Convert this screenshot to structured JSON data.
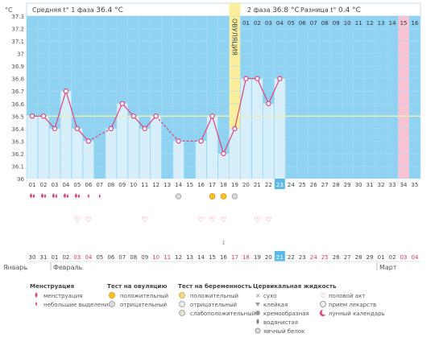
{
  "header": {
    "phase1_label": "Средняя t° 1 фаза",
    "phase1_value": "36.4 °C",
    "phase2_label": "2 фаза",
    "phase2_value": "36.8 °C",
    "diff_label": "Разница t°",
    "diff_value": "0.4 °C",
    "sun_icon": "sun-icon"
  },
  "y_unit": "°C",
  "ovulation_label": "ОВУЛЯЦИЯ",
  "colors": {
    "sky": "#8fd2f1",
    "bar": "#d7eefb",
    "line": "#e0447c",
    "ovulation": "#fbef9e",
    "menstruation_col": "#f7c2d2",
    "coverline": "#e7efb8",
    "today": "#5ab9e8",
    "red_text": "#e0306c"
  },
  "chart_data": {
    "type": "line",
    "ylim": [
      36.0,
      37.3
    ],
    "yticks": [
      "36",
      "36.1",
      "36.2",
      "36.3",
      "36.4",
      "36.5",
      "36.6",
      "36.7",
      "36.8",
      "36.9",
      "37",
      "37.1",
      "37.2",
      "37.3"
    ],
    "cycle_days": [
      "01",
      "02",
      "03",
      "04",
      "05",
      "06",
      "07",
      "08",
      "09",
      "10",
      "11",
      "12",
      "13",
      "14",
      "15",
      "16",
      "17",
      "18",
      "19",
      "20",
      "21",
      "22",
      "23",
      "24",
      "25",
      "26",
      "27",
      "28",
      "29",
      "30",
      "31",
      "32",
      "33",
      "34",
      "35"
    ],
    "temperatures": [
      36.5,
      36.5,
      36.4,
      36.7,
      36.4,
      36.3,
      null,
      36.4,
      36.6,
      36.5,
      36.4,
      36.5,
      null,
      36.3,
      null,
      36.3,
      36.5,
      36.2,
      36.4,
      36.8,
      36.8,
      36.6,
      36.8,
      null,
      null,
      null,
      null,
      null,
      null,
      null,
      null,
      null,
      null,
      null,
      null
    ],
    "coverline": 36.5,
    "ovulation_day": "19",
    "today_day": "23",
    "next_menstruation_day": "34",
    "phase2_day_labels": [
      "01",
      "02",
      "03",
      "04",
      "05",
      "06",
      "07",
      "08",
      "09",
      "10",
      "11",
      "12",
      "13",
      "14",
      "15",
      "16"
    ]
  },
  "markers": {
    "menstruation": [
      "01",
      "02",
      "03",
      "04",
      "05"
    ],
    "light_discharge": [
      "06",
      "07"
    ],
    "ovulation_negative": [
      "14",
      "17",
      "19"
    ],
    "ovulation_positive": [
      "17",
      "18"
    ],
    "intercourse": [
      "05",
      "06",
      "11",
      "16",
      "17",
      "18",
      "21",
      "22"
    ],
    "medication": [
      "18"
    ]
  },
  "calendar": {
    "dates": [
      "30",
      "31",
      "01",
      "02",
      "03",
      "04",
      "05",
      "06",
      "07",
      "08",
      "09",
      "10",
      "11",
      "12",
      "13",
      "14",
      "15",
      "16",
      "17",
      "18",
      "19",
      "20",
      "21",
      "22",
      "23",
      "24",
      "25",
      "26",
      "27",
      "28",
      "29",
      "01",
      "02",
      "03",
      "04"
    ],
    "weekend_dates": [
      "04",
      "05",
      "11",
      "12",
      "18",
      "19",
      "25",
      "26",
      "03",
      "04"
    ],
    "month_january": "Январь",
    "month_february": "Февраль",
    "month_march": "Март"
  },
  "legend": {
    "menstruation": {
      "title": "Менструация",
      "items": [
        "менструация",
        "небольшие выделения"
      ]
    },
    "ovulation_test": {
      "title": "Тест на овуляцию",
      "items": [
        "положительный",
        "отрицательный"
      ]
    },
    "pregnancy_test": {
      "title": "Тест на беременность",
      "items": [
        "положительный",
        "отрицательный",
        "слабоположительный"
      ]
    },
    "cervical": {
      "title": "Цервикальная жидкость",
      "items": [
        "сухо",
        "клейкая",
        "кремообразная",
        "водянистая",
        "яичный белок"
      ]
    },
    "other": {
      "items": [
        "половой акт",
        "прием лекарств",
        "лунный календарь"
      ]
    }
  }
}
